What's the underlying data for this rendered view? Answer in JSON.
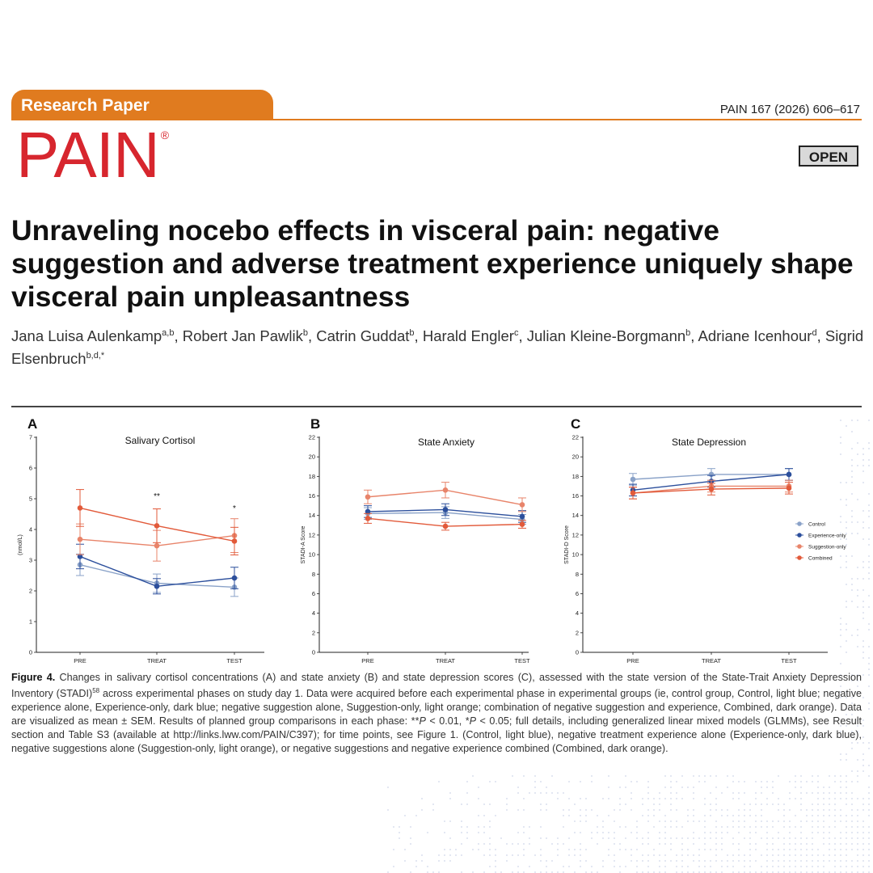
{
  "header": {
    "tag": "Research Paper",
    "citation": "PAIN 167 (2026) 606–617",
    "journal": "PAIN",
    "journal_mark": "®",
    "open": "OPEN"
  },
  "article": {
    "title": "Unraveling nocebo effects in visceral pain: negative suggestion and adverse treatment experience uniquely shape visceral pain unpleasantness",
    "authors": [
      {
        "name": "Jana Luisa Aulenkamp",
        "sup": "a,b",
        "sep": ", "
      },
      {
        "name": "Robert Jan Pawlik",
        "sup": "b",
        "sep": ", "
      },
      {
        "name": "Catrin Guddat",
        "sup": "b",
        "sep": ", "
      },
      {
        "name": "Harald Engler",
        "sup": "c",
        "sep": ", "
      },
      {
        "name": "Julian Kleine-Borgmann",
        "sup": "b",
        "sep": ", "
      },
      {
        "name": "Adriane Icenhour",
        "sup": "d",
        "sep": ", "
      },
      {
        "name": "Sigrid Elsenbruch",
        "sup": "b,d,*",
        "sep": ""
      }
    ]
  },
  "caption": {
    "label": "Figure 4.",
    "p1": " Changes in salivary cortisol concentrations (A) and state anxiety (B) and state depression scores (C), assessed with the state version of the State-Trait Anxiety Depression Inventory (STADI)",
    "ref": "58",
    "p2": " across experimental phases on study day 1. Data were acquired before each experimental phase in experimental groups (ie, control group, Control, light blue; negative experience alone, Experience-only, dark blue; negative suggestion alone, Suggestion-only, light orange; combination of negative suggestion and experience, Combined, dark orange). Data are visualized as mean ± SEM. Results of planned group comparisons in each phase: **",
    "p_a": "P",
    "p3": " < 0.01, *",
    "p_b": "P",
    "p4": " < 0.05; full details, including generalized linear mixed models (GLMMs), see Result section and Table S3 (available at http://links.lww.com/PAIN/C397); for time points, see Figure 1. (Control, light blue), negative treatment experience alone (Experience-only, dark blue), negative suggestions alone (Suggestion-only, light orange), or negative suggestions and negative experience combined (Combined, dark orange)."
  },
  "colors": {
    "control": "#8aa2c8",
    "experience": "#2c4f9c",
    "suggestion": "#e8846a",
    "combined": "#e25a3a",
    "brand_orange": "#e07b1f",
    "brand_red": "#d7262e"
  },
  "chart_data": [
    {
      "panel": "A",
      "type": "line",
      "title": "Salivary Cortisol",
      "ylabel": "(nmol/L)",
      "categories": [
        "PRE",
        "TREAT",
        "TEST"
      ],
      "ylim": [
        0,
        7
      ],
      "yticks": [
        0,
        1,
        2,
        3,
        4,
        5,
        6,
        7
      ],
      "annotations": [
        {
          "category": "TREAT",
          "text": "**",
          "y": 5.0
        },
        {
          "category": "TEST",
          "text": "*",
          "y": 4.6
        }
      ],
      "series": [
        {
          "key": "control",
          "values": [
            2.85,
            2.25,
            2.12
          ],
          "errors": [
            0.35,
            0.3,
            0.3
          ]
        },
        {
          "key": "experience",
          "values": [
            3.12,
            2.15,
            2.42
          ],
          "errors": [
            0.4,
            0.25,
            0.35
          ]
        },
        {
          "key": "suggestion",
          "values": [
            3.68,
            3.47,
            3.8
          ],
          "errors": [
            0.5,
            0.5,
            0.55
          ]
        },
        {
          "key": "combined",
          "values": [
            4.7,
            4.12,
            3.62
          ],
          "errors": [
            0.6,
            0.55,
            0.45
          ]
        }
      ]
    },
    {
      "panel": "B",
      "type": "line",
      "title": "State Anxiety",
      "ylabel": "STADI-A Score",
      "categories": [
        "PRE",
        "TREAT",
        "TEST"
      ],
      "ylim": [
        0,
        22
      ],
      "yticks": [
        0,
        2,
        4,
        6,
        8,
        10,
        12,
        14,
        16,
        18,
        20,
        22
      ],
      "annotations": [],
      "series": [
        {
          "key": "control",
          "values": [
            14.2,
            14.3,
            13.6
          ],
          "errors": [
            0.6,
            0.6,
            0.5
          ]
        },
        {
          "key": "experience",
          "values": [
            14.4,
            14.6,
            13.9
          ],
          "errors": [
            0.6,
            0.6,
            0.6
          ]
        },
        {
          "key": "suggestion",
          "values": [
            15.9,
            16.6,
            15.1
          ],
          "errors": [
            0.7,
            0.8,
            0.7
          ]
        },
        {
          "key": "combined",
          "values": [
            13.7,
            12.9,
            13.1
          ],
          "errors": [
            0.5,
            0.4,
            0.4
          ]
        }
      ]
    },
    {
      "panel": "C",
      "type": "line",
      "title": "State Depression",
      "ylabel": "STADI-D Score",
      "categories": [
        "PRE",
        "TREAT",
        "TEST"
      ],
      "ylim": [
        0,
        22
      ],
      "yticks": [
        0,
        2,
        4,
        6,
        8,
        10,
        12,
        14,
        16,
        18,
        20,
        22
      ],
      "annotations": [],
      "legend": {
        "placement": "right",
        "entries": [
          "Control",
          "Experience-only",
          "Suggestion-only",
          "Combined"
        ]
      },
      "series": [
        {
          "key": "control",
          "values": [
            17.7,
            18.2,
            18.2
          ],
          "errors": [
            0.6,
            0.6,
            0.6
          ]
        },
        {
          "key": "experience",
          "values": [
            16.6,
            17.5,
            18.2
          ],
          "errors": [
            0.6,
            0.6,
            0.6
          ]
        },
        {
          "key": "suggestion",
          "values": [
            16.3,
            17.0,
            17.0
          ],
          "errors": [
            0.6,
            0.6,
            0.6
          ]
        },
        {
          "key": "combined",
          "values": [
            16.3,
            16.7,
            16.8
          ],
          "errors": [
            0.6,
            0.6,
            0.6
          ]
        }
      ]
    }
  ]
}
